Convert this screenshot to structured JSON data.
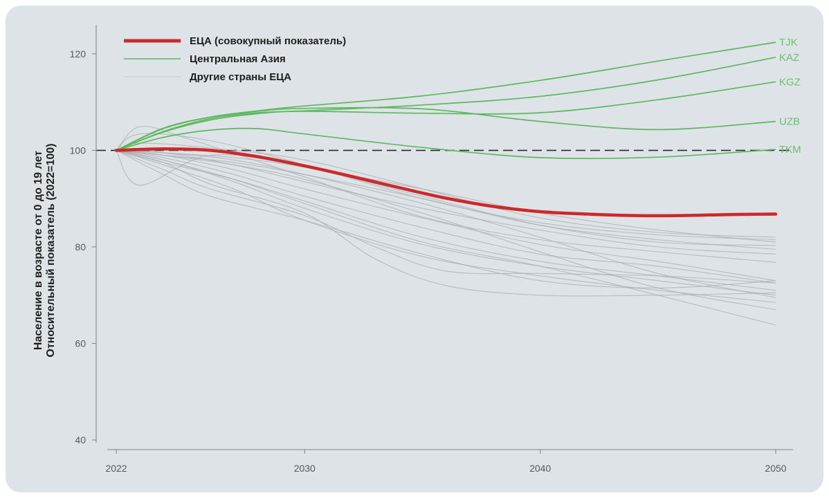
{
  "chart_data": {
    "type": "line",
    "title": "",
    "ylabel_lines": [
      "Население в возрасте от 0 до 19 лет",
      "Относительный показатель (2022=100)"
    ],
    "xlabel": "",
    "xlim": [
      2022,
      2050
    ],
    "ylim": [
      36,
      126
    ],
    "x_ticks": [
      2022,
      2030,
      2040,
      2050
    ],
    "y_ticks": [
      40,
      60,
      80,
      100,
      120
    ],
    "reference_line": {
      "y": 100,
      "style": "dashed"
    },
    "legend": {
      "placement": "top-left",
      "entries": [
        {
          "label": "ЕЦА (совокупный показатель)",
          "style": "aggregate"
        },
        {
          "label": "Центральная Азия",
          "style": "central_asia"
        },
        {
          "label": "Другие страны ЕЦА",
          "style": "other"
        }
      ]
    },
    "colors": {
      "aggregate": "#cc2a2a",
      "central_asia": "#5cb85c",
      "other": "#a9adb0",
      "end_label": "#6cc26c"
    },
    "aggregate": {
      "name": "ЕЦА (совокупный показатель)",
      "x": [
        2022,
        2024,
        2026,
        2028,
        2030,
        2032,
        2034,
        2036,
        2038,
        2040,
        2042,
        2044,
        2046,
        2048,
        2050
      ],
      "values": [
        100,
        100.3,
        100,
        98.7,
        96.8,
        94.6,
        92.3,
        90.1,
        88.4,
        87.3,
        86.8,
        86.5,
        86.5,
        86.7,
        86.8
      ]
    },
    "central_asia": [
      {
        "label": "TJK",
        "x": [
          2022,
          2024,
          2026,
          2028,
          2030,
          2035,
          2040,
          2045,
          2050
        ],
        "values": [
          100,
          104.5,
          106.9,
          108.2,
          109.2,
          111.3,
          114.5,
          118.5,
          122.4
        ]
      },
      {
        "label": "KAZ",
        "x": [
          2022,
          2024,
          2026,
          2028,
          2030,
          2035,
          2040,
          2045,
          2050
        ],
        "values": [
          100,
          103.9,
          106.6,
          107.8,
          108.2,
          109.4,
          111.2,
          114.6,
          119.3
        ]
      },
      {
        "label": "KGZ",
        "x": [
          2022,
          2024,
          2026,
          2028,
          2030,
          2035,
          2040,
          2045,
          2050
        ],
        "values": [
          100,
          103.8,
          106.3,
          107.6,
          108.1,
          107.7,
          107.8,
          110.5,
          114.2
        ]
      },
      {
        "label": "UZB",
        "x": [
          2022,
          2024,
          2026,
          2028,
          2030,
          2035,
          2040,
          2045,
          2050
        ],
        "values": [
          100,
          104.6,
          106.9,
          108.1,
          108.7,
          108.6,
          106.0,
          104.3,
          106.0
        ]
      },
      {
        "label": "TKM",
        "x": [
          2022,
          2024,
          2026,
          2028,
          2030,
          2035,
          2040,
          2045,
          2050
        ],
        "values": [
          100,
          102.7,
          104.2,
          104.5,
          103.4,
          100.6,
          98.5,
          98.6,
          100.2
        ]
      }
    ],
    "others": [
      {
        "x": [
          2022,
          2023,
          2025,
          2030,
          2035,
          2040,
          2045,
          2050
        ],
        "values": [
          100,
          104.9,
          102.5,
          94.5,
          86.2,
          81.5,
          79.0,
          76.8
        ]
      },
      {
        "x": [
          2022,
          2023,
          2026,
          2030,
          2035,
          2040,
          2045,
          2050
        ],
        "values": [
          100,
          103.4,
          102.0,
          97.0,
          90.0,
          85.0,
          82.5,
          81.5
        ]
      },
      {
        "x": [
          2022,
          2023,
          2026,
          2030,
          2035,
          2040,
          2045,
          2050
        ],
        "values": [
          100,
          101.5,
          100.5,
          98.0,
          92.0,
          86.0,
          83.0,
          82.0
        ]
      },
      {
        "x": [
          2022,
          2023,
          2026,
          2030,
          2035,
          2040,
          2045,
          2050
        ],
        "values": [
          100,
          92.8,
          99.0,
          96.5,
          90.5,
          84.5,
          81.0,
          80.3
        ]
      },
      {
        "x": [
          2022,
          2024,
          2027,
          2030,
          2035,
          2040,
          2045,
          2050
        ],
        "values": [
          100,
          99.5,
          97.0,
          93.5,
          88.0,
          83.5,
          80.0,
          78.5
        ]
      },
      {
        "x": [
          2022,
          2024,
          2027,
          2030,
          2035,
          2040,
          2045,
          2050
        ],
        "values": [
          100,
          99.0,
          96.0,
          92.0,
          86.0,
          80.5,
          77.0,
          73.0
        ]
      },
      {
        "x": [
          2022,
          2024,
          2027,
          2030,
          2035,
          2040,
          2045,
          2050
        ],
        "values": [
          100,
          98.5,
          95.0,
          90.5,
          84.0,
          78.5,
          76.0,
          72.5
        ]
      },
      {
        "x": [
          2022,
          2024,
          2027,
          2030,
          2035,
          2040,
          2045,
          2050
        ],
        "values": [
          100,
          97.5,
          94.0,
          89.5,
          82.0,
          77.0,
          74.0,
          71.0
        ]
      },
      {
        "x": [
          2022,
          2024,
          2027,
          2030,
          2035,
          2040,
          2045,
          2050
        ],
        "values": [
          100,
          98.0,
          93.5,
          88.0,
          80.5,
          76.0,
          73.0,
          70.0
        ]
      },
      {
        "x": [
          2022,
          2024,
          2027,
          2030,
          2035,
          2040,
          2045,
          2050
        ],
        "values": [
          100,
          97.0,
          92.0,
          85.5,
          78.0,
          74.0,
          71.0,
          68.5
        ]
      },
      {
        "x": [
          2022,
          2024,
          2027,
          2030,
          2035,
          2040,
          2045,
          2050
        ],
        "values": [
          100,
          99.5,
          98.0,
          95.0,
          89.0,
          82.0,
          74.5,
          69.5
        ]
      },
      {
        "x": [
          2022,
          2024,
          2027,
          2030,
          2035,
          2040,
          2045,
          2050
        ],
        "values": [
          100,
          99.0,
          97.0,
          94.0,
          87.0,
          79.0,
          71.5,
          67.0
        ]
      },
      {
        "x": [
          2022,
          2024,
          2027,
          2030,
          2035,
          2040,
          2045,
          2050
        ],
        "values": [
          100,
          98.0,
          94.0,
          89.0,
          81.0,
          76.0,
          70.0,
          63.8
        ]
      },
      {
        "x": [
          2022,
          2024,
          2026,
          2030,
          2033,
          2036,
          2040,
          2045,
          2050
        ],
        "values": [
          100,
          97.5,
          93.0,
          87.0,
          77.5,
          72.0,
          70.0,
          70.0,
          70.5
        ]
      },
      {
        "x": [
          2022,
          2024,
          2026,
          2030,
          2033,
          2036,
          2040,
          2045,
          2050
        ],
        "values": [
          100,
          96.0,
          92.0,
          86.5,
          80.0,
          75.0,
          74.5,
          74.0,
          72.5
        ]
      },
      {
        "x": [
          2022,
          2024,
          2026,
          2030,
          2035,
          2040,
          2045,
          2050
        ],
        "values": [
          100,
          95.0,
          90.5,
          85.5,
          78.5,
          73.0,
          71.5,
          73.0
        ]
      },
      {
        "x": [
          2022,
          2024,
          2027,
          2030,
          2035,
          2040,
          2045,
          2050
        ],
        "values": [
          100,
          99.5,
          98.5,
          96.5,
          92.0,
          87.0,
          83.5,
          81.0
        ]
      },
      {
        "x": [
          2022,
          2024,
          2027,
          2030,
          2035,
          2040,
          2045,
          2050
        ],
        "values": [
          100,
          99.0,
          97.5,
          95.0,
          90.0,
          84.5,
          81.5,
          79.5
        ]
      }
    ]
  }
}
